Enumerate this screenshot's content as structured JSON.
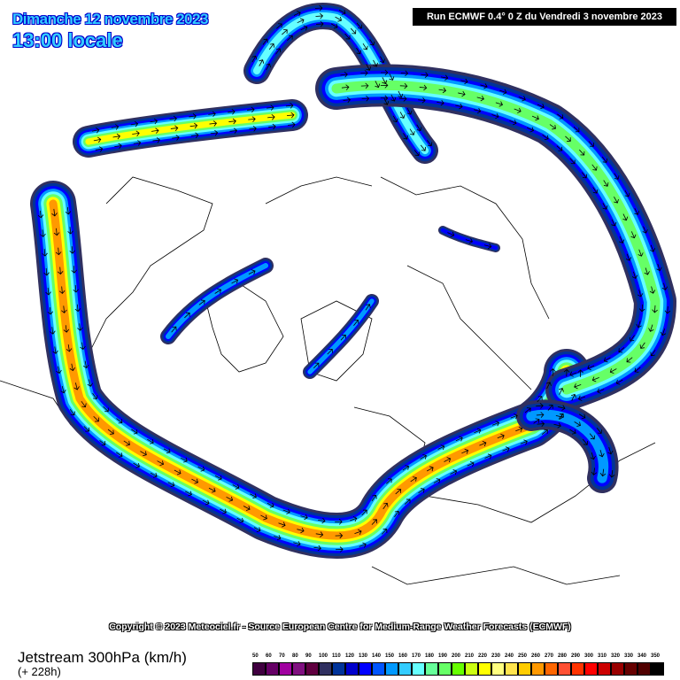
{
  "header": {
    "date": "Dimanche 12 novembre 2023",
    "time": "13:00 locale",
    "run": "Run ECMWF 0.4° 0 Z du Vendredi 3 novembre 2023"
  },
  "copyright": "Copyright © 2023 Meteociel.fr - Source European Centre for Medium-Range Weather Forecasts (ECMWF)",
  "footer": {
    "parameter": "Jetstream 300hPa (km/h)",
    "lead": "(+ 228h)"
  },
  "legend": [
    {
      "v": "50",
      "c": "#400040"
    },
    {
      "v": "60",
      "c": "#660066"
    },
    {
      "v": "70",
      "c": "#a000a0"
    },
    {
      "v": "80",
      "c": "#801080"
    },
    {
      "v": "90",
      "c": "#600040"
    },
    {
      "v": "100",
      "c": "#303060"
    },
    {
      "v": "110",
      "c": "#003399"
    },
    {
      "v": "120",
      "c": "#0000cc"
    },
    {
      "v": "130",
      "c": "#0000ff"
    },
    {
      "v": "140",
      "c": "#0055ff"
    },
    {
      "v": "150",
      "c": "#0099ff"
    },
    {
      "v": "160",
      "c": "#33ccff"
    },
    {
      "v": "170",
      "c": "#66ffff"
    },
    {
      "v": "180",
      "c": "#66ff99"
    },
    {
      "v": "190",
      "c": "#66ff66"
    },
    {
      "v": "200",
      "c": "#66ff00"
    },
    {
      "v": "210",
      "c": "#ccff11"
    },
    {
      "v": "220",
      "c": "#ffff00"
    },
    {
      "v": "230",
      "c": "#ffff80"
    },
    {
      "v": "240",
      "c": "#ffe44d"
    },
    {
      "v": "250",
      "c": "#ffcc00"
    },
    {
      "v": "260",
      "c": "#ff9900"
    },
    {
      "v": "270",
      "c": "#ff6600"
    },
    {
      "v": "280",
      "c": "#ff5033"
    },
    {
      "v": "290",
      "c": "#ff3300"
    },
    {
      "v": "300",
      "c": "#ff0000"
    },
    {
      "v": "310",
      "c": "#cc0000"
    },
    {
      "v": "320",
      "c": "#990000"
    },
    {
      "v": "330",
      "c": "#660000"
    },
    {
      "v": "340",
      "c": "#500000"
    },
    {
      "v": "350",
      "c": "#000000"
    }
  ]
}
